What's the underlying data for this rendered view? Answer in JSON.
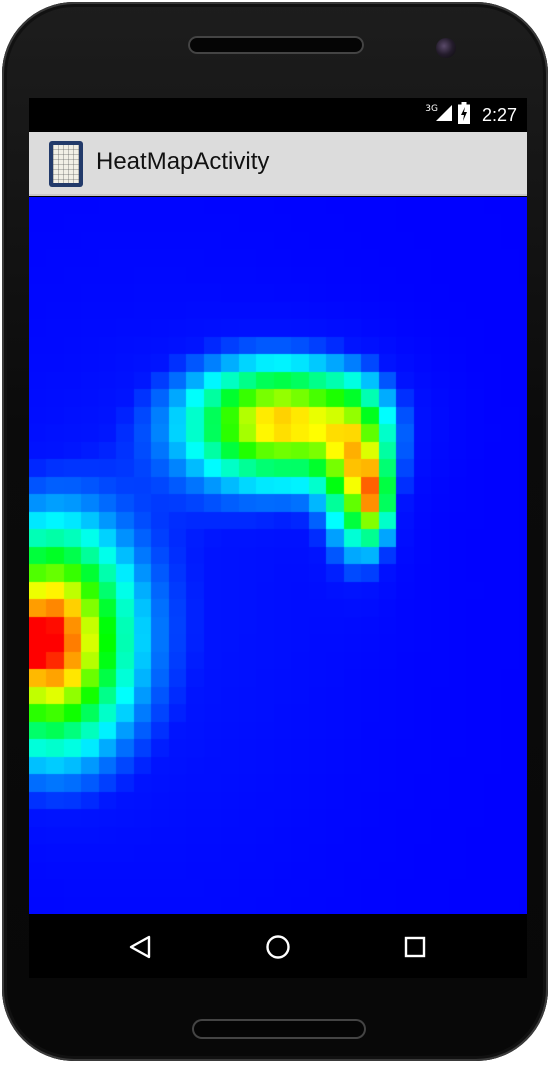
{
  "status_bar": {
    "network_label": "3G",
    "time": "2:27",
    "icons": [
      "signal-icon",
      "battery-charging-icon"
    ]
  },
  "action_bar": {
    "title": "HeatMapActivity",
    "app_icon": "heatmap-app-icon"
  },
  "heatmap": {
    "colors": {
      "background": "#0000ff",
      "cold": "#0000ff",
      "cyan": "#00ffff",
      "green": "#00ff00",
      "yellow": "#ffff00",
      "orange": "#ff8000",
      "hot": "#ff0000"
    }
  },
  "nav_bar": {
    "buttons": [
      "back-icon",
      "home-icon",
      "recents-icon"
    ]
  }
}
